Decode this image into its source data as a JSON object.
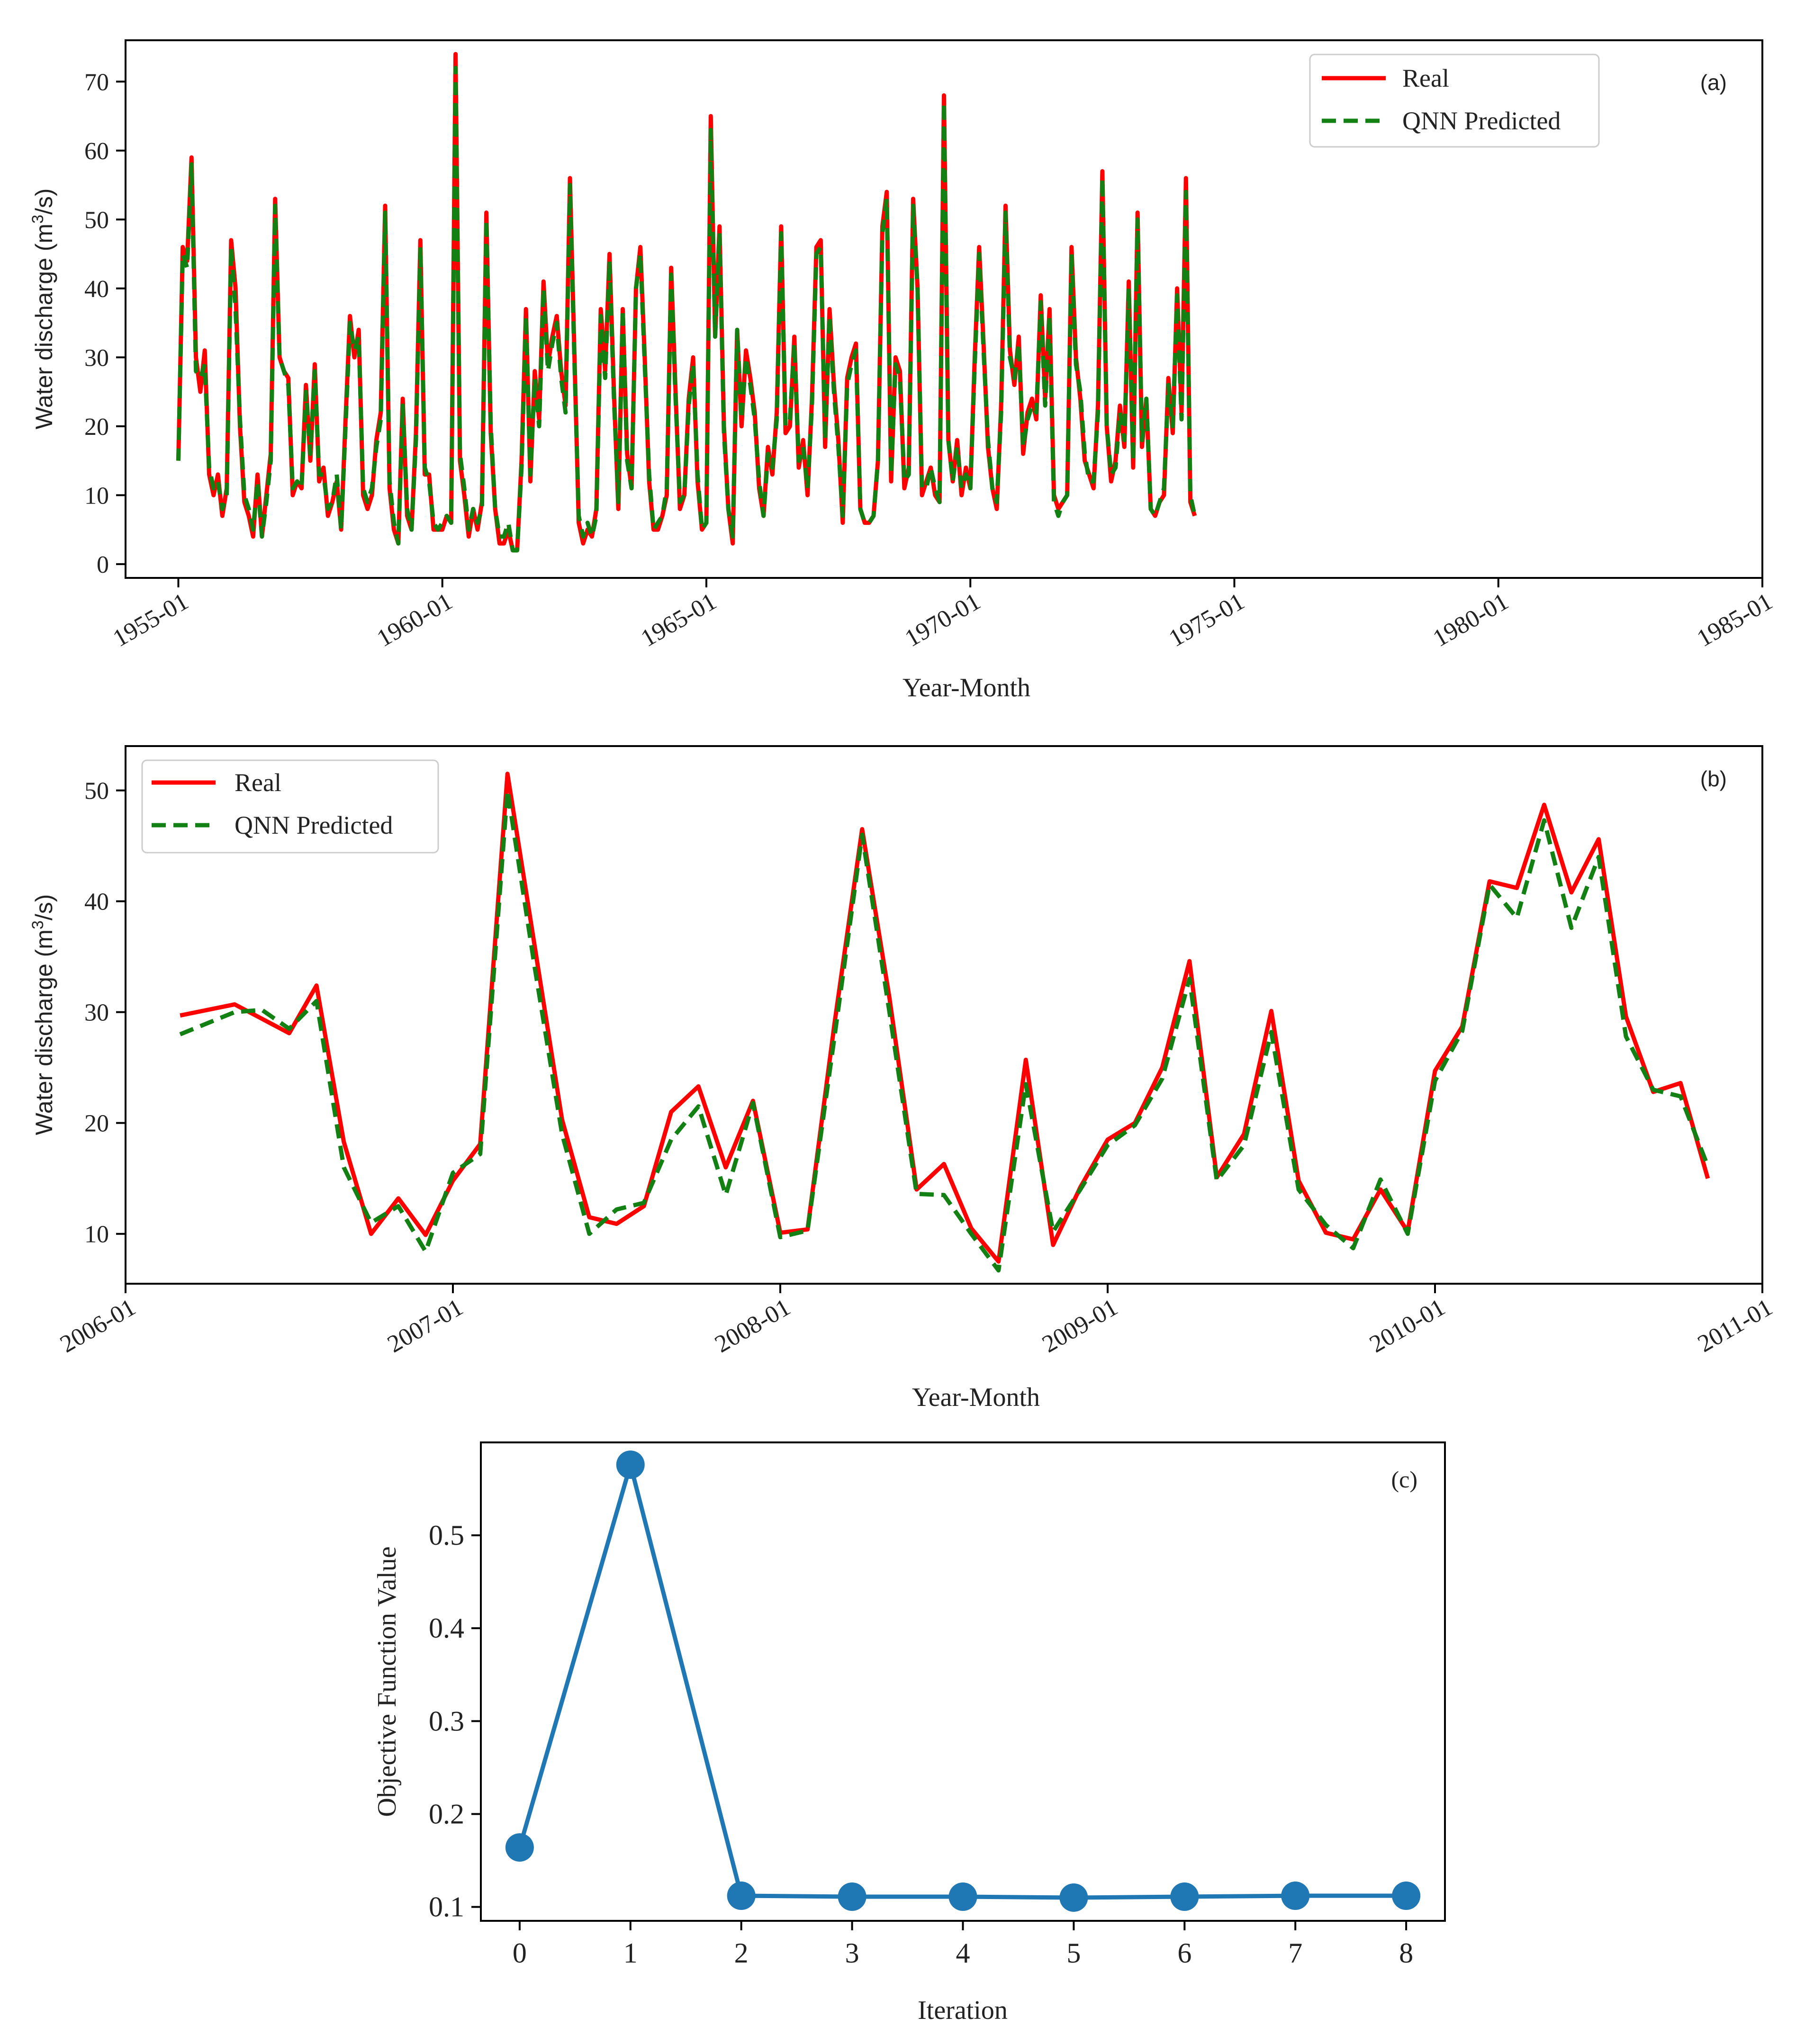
{
  "colors": {
    "real": "#ff0000",
    "predicted": "#138013",
    "objective": "#1f77b4"
  },
  "chart_data": [
    {
      "panel": "(a)",
      "type": "line",
      "xlabel": "Year-Month",
      "ylabel_parts": {
        "pre": "Water discharge (m",
        "sup": "3",
        "post": "/s)"
      },
      "x_ticks": [
        "1955-01",
        "1960-01",
        "1965-01",
        "1970-01",
        "1975-01",
        "1980-01",
        "1985-01"
      ],
      "x_range_years": [
        1954.0,
        1985.0
      ],
      "x_start_year": 1955.0,
      "x_step_months": 1,
      "ylim": [
        -2,
        76
      ],
      "y_ticks": [
        0,
        10,
        20,
        30,
        40,
        50,
        60,
        70
      ],
      "legend": [
        "Real",
        "QNN Predicted"
      ],
      "legend_position": "top-right",
      "series": [
        {
          "name": "Real",
          "values": [
            15,
            46,
            44,
            59,
            30,
            25,
            31,
            13,
            10,
            13,
            7,
            11,
            47,
            40,
            20,
            9,
            7,
            4,
            13,
            4,
            10,
            16,
            53,
            30,
            28,
            27,
            10,
            12,
            11,
            26,
            15,
            29,
            12,
            14,
            7,
            9,
            12,
            5,
            21,
            36,
            30,
            34,
            10,
            8,
            10,
            18,
            22,
            52,
            11,
            5,
            3,
            24,
            7,
            5,
            19,
            47,
            13,
            13,
            5,
            5,
            5,
            7,
            6,
            74,
            15,
            10,
            4,
            8,
            5,
            9,
            51,
            19,
            8,
            3,
            3,
            5,
            2,
            2,
            15,
            37,
            12,
            28,
            21,
            41,
            29,
            33,
            36,
            28,
            23,
            56,
            31,
            6,
            3,
            5,
            4,
            8,
            37,
            28,
            45,
            25,
            8,
            37,
            16,
            11,
            40,
            46,
            30,
            12,
            5,
            5,
            7,
            10,
            43,
            25,
            8,
            10,
            24,
            30,
            12,
            5,
            6,
            65,
            33,
            49,
            20,
            8,
            3,
            34,
            20,
            31,
            27,
            22,
            11,
            7,
            17,
            13,
            22,
            49,
            19,
            20,
            33,
            14,
            18,
            10,
            24,
            46,
            47,
            17,
            37,
            26,
            18,
            6,
            27,
            30,
            32,
            8,
            6,
            6,
            7,
            15,
            49,
            54,
            12,
            30,
            28,
            11,
            14,
            53,
            40,
            10,
            12,
            14,
            10,
            9,
            68,
            18,
            12,
            18,
            10,
            14,
            11,
            30,
            46,
            32,
            17,
            11,
            8,
            23,
            52,
            31,
            26,
            33,
            16,
            22,
            24,
            21,
            39,
            24,
            37,
            10,
            8,
            9,
            10,
            46,
            30,
            24,
            15,
            13,
            11,
            23,
            57,
            20,
            12,
            15,
            23,
            17,
            41,
            14,
            51,
            17,
            24,
            8,
            7,
            9,
            10,
            27,
            19,
            40,
            22,
            56,
            9,
            7
          ]
        },
        {
          "name": "QNN Predicted",
          "values": [
            15,
            45,
            43,
            58,
            28,
            27,
            29,
            14,
            11,
            12,
            8,
            10,
            46,
            37,
            21,
            10,
            8,
            5,
            12,
            4,
            9,
            15,
            52,
            30,
            28,
            26,
            11,
            12,
            11,
            25,
            16,
            28,
            13,
            13,
            8,
            9,
            13,
            5,
            20,
            35,
            31,
            33,
            11,
            9,
            11,
            17,
            21,
            51,
            12,
            6,
            3,
            23,
            8,
            5,
            18,
            46,
            14,
            12,
            6,
            5,
            6,
            7,
            6,
            72,
            16,
            11,
            5,
            8,
            6,
            8,
            50,
            20,
            8,
            4,
            4,
            6,
            2,
            2,
            14,
            36,
            13,
            27,
            20,
            40,
            28,
            32,
            35,
            27,
            22,
            55,
            30,
            7,
            4,
            6,
            4,
            7,
            36,
            27,
            44,
            24,
            9,
            37,
            15,
            11,
            40,
            45,
            29,
            13,
            5,
            6,
            7,
            11,
            42,
            24,
            9,
            10,
            23,
            29,
            13,
            5,
            6,
            63,
            33,
            48,
            19,
            8,
            4,
            34,
            21,
            30,
            26,
            21,
            12,
            7,
            16,
            14,
            21,
            48,
            20,
            21,
            32,
            15,
            17,
            11,
            23,
            45,
            46,
            18,
            36,
            25,
            17,
            7,
            26,
            29,
            31,
            8,
            6,
            6,
            7,
            15,
            48,
            53,
            13,
            29,
            27,
            12,
            13,
            52,
            40,
            11,
            11,
            14,
            11,
            9,
            67,
            18,
            12,
            17,
            11,
            13,
            11,
            29,
            45,
            31,
            18,
            11,
            9,
            22,
            51,
            30,
            27,
            32,
            17,
            21,
            23,
            22,
            38,
            23,
            36,
            9,
            7,
            9,
            10,
            45,
            29,
            25,
            16,
            12,
            12,
            22,
            56,
            20,
            13,
            14,
            22,
            18,
            40,
            15,
            50,
            18,
            24,
            8,
            7,
            9,
            11,
            26,
            20,
            39,
            21,
            54,
            10,
            7
          ]
        }
      ]
    },
    {
      "panel": "(b)",
      "type": "line",
      "xlabel": "Year-Month",
      "ylabel_parts": {
        "pre": "Water discharge (m",
        "sup": "3",
        "post": "/s)"
      },
      "x_ticks": [
        "2006-01",
        "2007-01",
        "2008-01",
        "2009-01",
        "2010-01",
        "2011-01"
      ],
      "x_range_years": [
        2006.0,
        2011.0
      ],
      "x_start_year": 2006.1667,
      "x_step_months": 1,
      "ylim": [
        5.5,
        54
      ],
      "y_ticks": [
        10,
        20,
        30,
        40,
        50
      ],
      "legend": [
        "Real",
        "QNN Predicted"
      ],
      "legend_position": "top-left",
      "series": [
        {
          "name": "Real",
          "values": [
            29.7,
            30.2,
            30.7,
            29.4,
            28.1,
            32.4,
            18.3,
            10.0,
            13.2,
            9.9,
            14.8,
            18.1,
            51.5,
            35.9,
            20.3,
            11.5,
            10.9,
            12.5,
            21.0,
            23.3,
            16.0,
            22.0,
            10.1,
            10.4,
            29.2,
            46.5,
            31.3,
            14.0,
            16.3,
            10.5,
            7.5,
            25.7,
            9.0,
            14.2,
            18.5,
            20.0,
            25.0,
            34.6,
            15.1,
            19.0,
            30.1,
            14.8,
            10.1,
            9.5,
            14.0,
            10.2,
            24.7,
            28.7,
            41.8,
            41.2,
            48.7,
            40.8,
            45.6,
            29.6,
            22.8,
            23.6,
            15.0
          ]
        },
        {
          "name": "QNN Predicted",
          "values": [
            28.0,
            29.0,
            30.0,
            30.2,
            28.5,
            31.0,
            16.0,
            11.0,
            12.5,
            8.4,
            15.5,
            17.2,
            50.0,
            34.0,
            19.0,
            10.0,
            12.2,
            12.8,
            18.5,
            21.5,
            13.5,
            21.8,
            9.7,
            10.3,
            28.0,
            46.0,
            30.0,
            13.6,
            13.5,
            10.0,
            6.7,
            23.5,
            10.2,
            14.0,
            18.0,
            19.8,
            24.0,
            33.0,
            14.8,
            18.0,
            28.2,
            14.0,
            10.8,
            8.7,
            14.9,
            10.0,
            23.8,
            28.3,
            41.5,
            38.5,
            47.3,
            37.6,
            44.0,
            27.8,
            23.0,
            22.4,
            16.1
          ]
        }
      ]
    },
    {
      "panel": "(c)",
      "type": "line",
      "xlabel": "Iteration",
      "ylabel": "Objective Function Value",
      "x": [
        0,
        1,
        2,
        3,
        4,
        5,
        6,
        7,
        8
      ],
      "x_ticks": [
        "0",
        "1",
        "2",
        "3",
        "4",
        "5",
        "6",
        "7",
        "8"
      ],
      "xlim": [
        -0.35,
        8.35
      ],
      "ylim": [
        0.085,
        0.6
      ],
      "y_ticks": [
        "0.1",
        "0.2",
        "0.3",
        "0.4",
        "0.5"
      ],
      "series": [
        {
          "name": "Objective Function Value",
          "values": [
            0.164,
            0.576,
            0.112,
            0.111,
            0.111,
            0.11,
            0.111,
            0.112,
            0.112
          ]
        }
      ]
    }
  ]
}
